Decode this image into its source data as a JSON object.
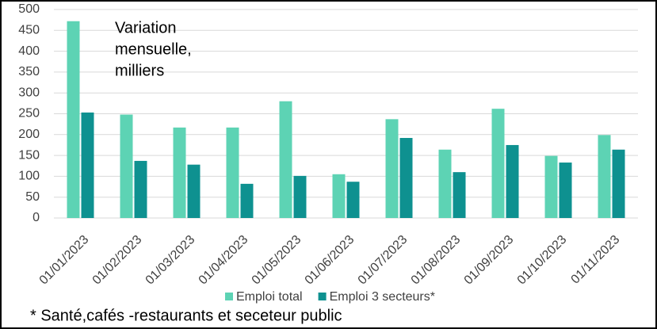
{
  "chart_data": {
    "type": "bar",
    "annotation": [
      "Variation",
      "mensuelle,",
      "milliers"
    ],
    "footnote": "* Santé,cafés -restaurants et seceteur public",
    "categories": [
      "01/01/2023",
      "01/02/2023",
      "01/03/2023",
      "01/04/2023",
      "01/05/2023",
      "01/06/2023",
      "01/07/2023",
      "01/08/2023",
      "01/09/2023",
      "01/10/2023",
      "01/11/2023"
    ],
    "series": [
      {
        "name": "Emploi total",
        "color": "#5dd3b4",
        "values": [
          472,
          248,
          217,
          217,
          280,
          105,
          237,
          164,
          262,
          149,
          199
        ]
      },
      {
        "name": "Emploi 3 secteurs*",
        "color": "#0e9190",
        "values": [
          253,
          137,
          128,
          82,
          101,
          87,
          192,
          110,
          175,
          133,
          164
        ]
      }
    ],
    "ylim": [
      0,
      500
    ],
    "yticks": [
      0,
      50,
      100,
      150,
      200,
      250,
      300,
      350,
      400,
      450,
      500
    ],
    "grid": true
  }
}
